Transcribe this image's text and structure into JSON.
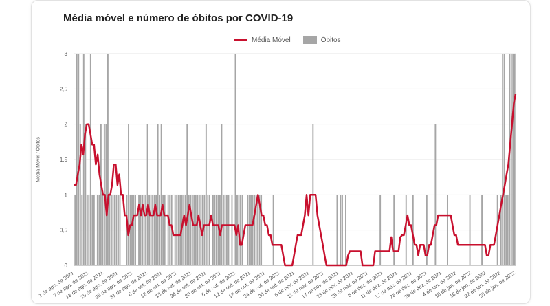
{
  "chart_data": {
    "type": "bar",
    "title": "Média móvel e número de óbitos por COVID-19",
    "ylabel": "Média Móvel / Óbitos",
    "ylim": [
      0,
      3
    ],
    "yticks": [
      "0",
      "0,5",
      "1",
      "1,5",
      "2",
      "2,5",
      "3"
    ],
    "x_tick_labels": [
      "1 de ago. de 2021",
      "7 de ago. de 2021",
      "13 de ago. de 2021",
      "19 de ago. de 2021",
      "25 de ago. de 2021",
      "31 de ago. de 2021",
      "6 de set. de 2021",
      "12 de set. de 2021",
      "18 de set. de 2021",
      "24 de set. de 2021",
      "30 de set. de 2021",
      "6 de out. de 2021",
      "12 de out. de 2021",
      "18 de out. de 2021",
      "24 de out. de 2021",
      "30 de out. de 2021",
      "5 de nov. de 2021",
      "11 de nov. de 2021",
      "17 de nov. de 2021",
      "23 de nov. de 2021",
      "29 de nov. de 2021",
      "5 de dez. de 2021",
      "11 de dez. de 2021",
      "17 de dez. de 2021",
      "23 de dez. de 2021",
      "29 de dez. de 2021",
      "4 de jan. de 2022",
      "10 de jan. de 2022",
      "16 de jan. de 2022",
      "22 de jan. de 2022",
      "28 de jan. de 2022"
    ],
    "legend": [
      "Média Móvel",
      "Óbitos"
    ],
    "legend_position": "top",
    "grid": true,
    "series": [
      {
        "name": "Óbitos",
        "type": "bar",
        "color": "#a6a6a6",
        "values": [
          1,
          3,
          3,
          2,
          1,
          3,
          2,
          1,
          1,
          3,
          1,
          1,
          0,
          1,
          1,
          2,
          1,
          2,
          2,
          3,
          1,
          1,
          1,
          1,
          1,
          1,
          1,
          0,
          0,
          0,
          1,
          2,
          1,
          1,
          1,
          1,
          0,
          1,
          1,
          1,
          1,
          1,
          2,
          1,
          1,
          1,
          1,
          1,
          2,
          1,
          2,
          1,
          1,
          0,
          1,
          1,
          1,
          0,
          1,
          1,
          1,
          1,
          1,
          1,
          1,
          2,
          1,
          1,
          1,
          1,
          1,
          1,
          1,
          1,
          1,
          1,
          2,
          1,
          1,
          0,
          1,
          1,
          1,
          1,
          1,
          2,
          1,
          1,
          1,
          1,
          0,
          1,
          0,
          3,
          1,
          1,
          1,
          1,
          0,
          0,
          1,
          1,
          1,
          1,
          1,
          1,
          1,
          1,
          1,
          0,
          0,
          0,
          0,
          0,
          0,
          1,
          0,
          0,
          0,
          0,
          0,
          0,
          0,
          0,
          0,
          0,
          0,
          0,
          0,
          0,
          0,
          0,
          0,
          0,
          0,
          0,
          0,
          0,
          2,
          0,
          0,
          0,
          0,
          0,
          0,
          0,
          0,
          0,
          0,
          0,
          0,
          0,
          1,
          0,
          1,
          1,
          0,
          1,
          0,
          0,
          0,
          0,
          0,
          0,
          0,
          0,
          0,
          0,
          0,
          0,
          0,
          0,
          0,
          0,
          0,
          0,
          0,
          1,
          0,
          0,
          0,
          0,
          0,
          0,
          0,
          1,
          0,
          0,
          0,
          0,
          0,
          0,
          1,
          0,
          0,
          0,
          1,
          0,
          0,
          0,
          0,
          0,
          0,
          0,
          1,
          0,
          0,
          0,
          0,
          2,
          0,
          0,
          0,
          0,
          0,
          0,
          1,
          0,
          0,
          0,
          0,
          0,
          0,
          0,
          0,
          0,
          0,
          0,
          0,
          1,
          0,
          0,
          0,
          0,
          0,
          0,
          1,
          0,
          0,
          0,
          0,
          0,
          0,
          0,
          0,
          1,
          0,
          1,
          3,
          3,
          1,
          1,
          3,
          3,
          3,
          3
        ]
      },
      {
        "name": "Média Móvel",
        "type": "line",
        "color": "#c8102e",
        "values": [
          1.14,
          1.14,
          1.29,
          1.43,
          1.71,
          1.57,
          1.86,
          2.0,
          2.0,
          1.86,
          1.71,
          1.71,
          1.43,
          1.57,
          1.29,
          1.14,
          1.0,
          1.0,
          0.71,
          1.0,
          1.0,
          1.14,
          1.43,
          1.43,
          1.14,
          1.29,
          1.0,
          1.0,
          0.71,
          0.71,
          0.43,
          0.57,
          0.57,
          0.71,
          0.71,
          0.71,
          0.86,
          0.71,
          0.86,
          0.71,
          0.71,
          0.86,
          0.71,
          0.71,
          0.71,
          0.86,
          0.71,
          0.71,
          0.71,
          0.86,
          0.71,
          0.71,
          0.71,
          0.57,
          0.57,
          0.43,
          0.43,
          0.43,
          0.43,
          0.43,
          0.57,
          0.71,
          0.57,
          0.71,
          0.86,
          0.71,
          0.57,
          0.57,
          0.57,
          0.71,
          0.57,
          0.43,
          0.57,
          0.57,
          0.57,
          0.57,
          0.71,
          0.57,
          0.57,
          0.57,
          0.57,
          0.43,
          0.57,
          0.57,
          0.57,
          0.57,
          0.57,
          0.57,
          0.57,
          0.57,
          0.43,
          0.57,
          0.29,
          0.29,
          0.43,
          0.57,
          0.57,
          0.57,
          0.57,
          0.57,
          0.71,
          0.86,
          1.0,
          0.86,
          0.71,
          0.71,
          0.57,
          0.57,
          0.43,
          0.43,
          0.29,
          0.29,
          0.29,
          0.29,
          0.29,
          0.29,
          0.14,
          0.0,
          0.0,
          0.0,
          0.0,
          0.0,
          0.14,
          0.29,
          0.43,
          0.43,
          0.43,
          0.57,
          0.71,
          1.0,
          0.71,
          1.0,
          1.0,
          1.0,
          1.0,
          0.71,
          0.57,
          0.43,
          0.29,
          0.14,
          0.0,
          0.0,
          0.0,
          0.0,
          0.0,
          0.0,
          0.0,
          0.0,
          0.0,
          0.0,
          0.0,
          0.0,
          0.14,
          0.2,
          0.2,
          0.2,
          0.2,
          0.2,
          0.2,
          0.2,
          0.0,
          0.0,
          0.0,
          0.0,
          0.0,
          0.0,
          0.0,
          0.2,
          0.2,
          0.2,
          0.2,
          0.2,
          0.2,
          0.2,
          0.2,
          0.2,
          0.4,
          0.2,
          0.2,
          0.2,
          0.2,
          0.4,
          0.43,
          0.43,
          0.57,
          0.71,
          0.57,
          0.57,
          0.43,
          0.29,
          0.29,
          0.14,
          0.29,
          0.29,
          0.29,
          0.14,
          0.14,
          0.29,
          0.29,
          0.43,
          0.57,
          0.57,
          0.71,
          0.71,
          0.71,
          0.71,
          0.71,
          0.71,
          0.71,
          0.71,
          0.57,
          0.43,
          0.43,
          0.29,
          0.29,
          0.29,
          0.29,
          0.29,
          0.29,
          0.29,
          0.29,
          0.29,
          0.29,
          0.29,
          0.29,
          0.29,
          0.29,
          0.29,
          0.29,
          0.14,
          0.14,
          0.29,
          0.29,
          0.29,
          0.43,
          0.57,
          0.71,
          0.86,
          1.0,
          1.14,
          1.29,
          1.43,
          1.71,
          2.0,
          2.29,
          2.43
        ]
      }
    ]
  }
}
